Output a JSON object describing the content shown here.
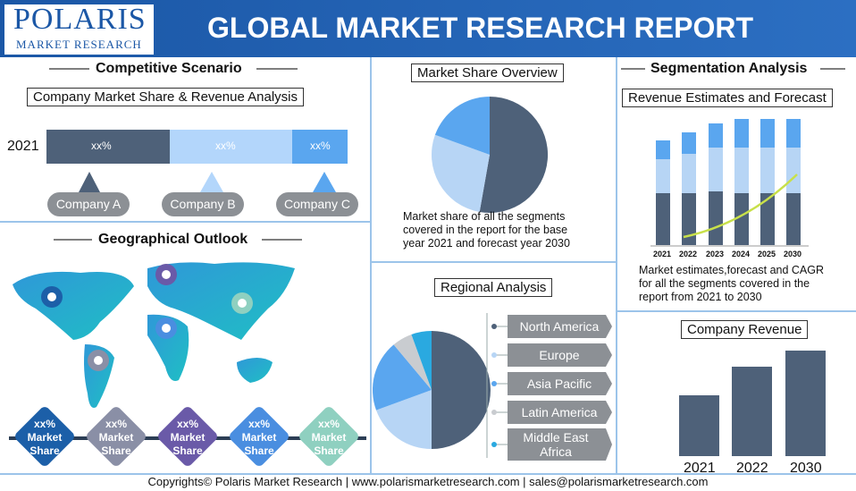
{
  "header": {
    "logo_title": "POLARIS",
    "logo_subtitle": "MARKET RESEARCH",
    "title": "GLOBAL MARKET RESEARCH REPORT"
  },
  "competitive": {
    "title": "Competitive Scenario",
    "subtitle": "Company Market Share & Revenue Analysis",
    "year": "2021",
    "segments": [
      "xx%",
      "xx%",
      "xx%"
    ],
    "companies": [
      "Company A",
      "Company B",
      "Company C"
    ]
  },
  "geographical": {
    "title": "Geographical Outlook",
    "badges": [
      {
        "value": "xx%",
        "label": "Market Share"
      },
      {
        "value": "xx%",
        "label": "Market Share"
      },
      {
        "value": "xx%",
        "label": "Market Share"
      },
      {
        "value": "xx%",
        "label": "Market Share"
      },
      {
        "value": "xx%",
        "label": "Market Share"
      }
    ]
  },
  "market_share": {
    "title": "Market Share Overview",
    "caption": "Market share of all the segments covered in the report for the base year 2021 and forecast year 2030"
  },
  "segmentation": {
    "title": "Segmentation Analysis",
    "subtitle": "Revenue Estimates and Forecast",
    "years": [
      "2021",
      "2022",
      "2023",
      "2024",
      "2025",
      "2030"
    ],
    "caption": "Market estimates,forecast and CAGR for all the segments covered in the report from 2021 to 2030"
  },
  "regional": {
    "title": "Regional Analysis",
    "regions": [
      "North America",
      "Europe",
      "Asia Pacific",
      "Latin America",
      "Middle East Africa"
    ]
  },
  "company_revenue": {
    "title": "Company Revenue",
    "years": [
      "2021",
      "2022",
      "2030"
    ]
  },
  "footer": "Copyrights© Polaris Market Research | www.polarismarketresearch.com | sales@polarismarketresearch.com"
}
